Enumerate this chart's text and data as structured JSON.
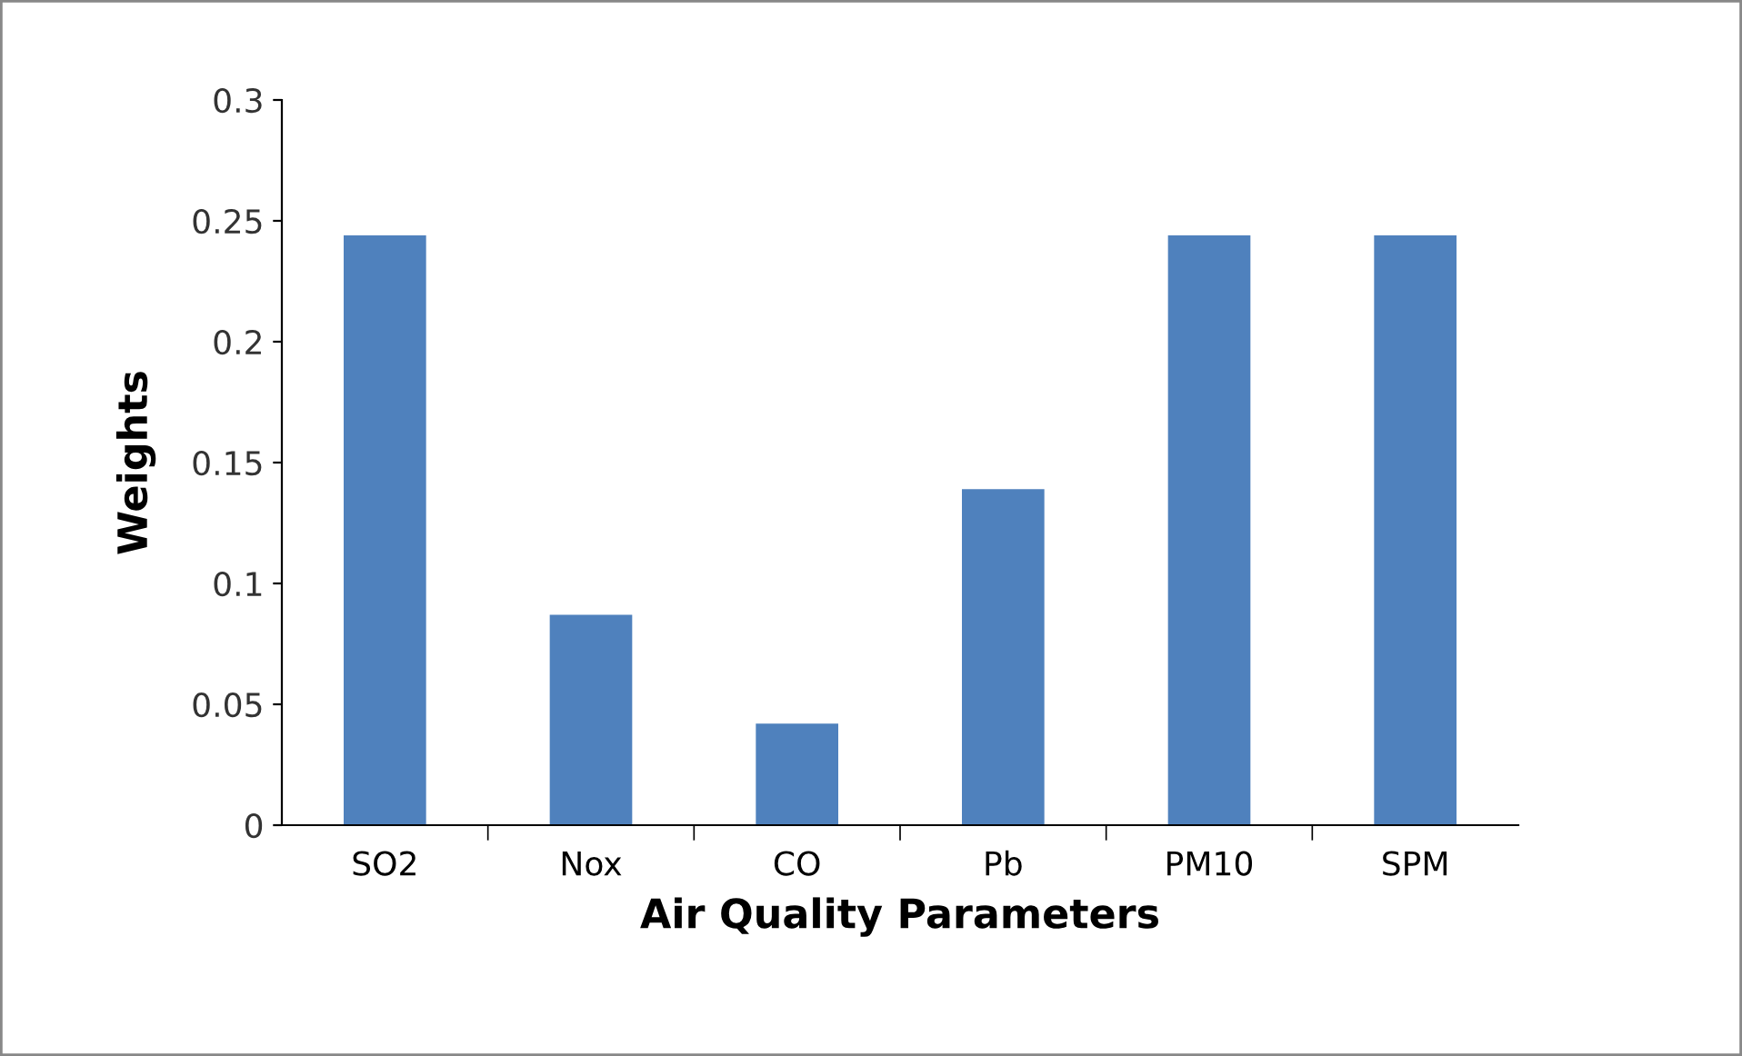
{
  "chart_data": {
    "type": "bar",
    "xlabel": "Air Quality Parameters",
    "ylabel": "Weights",
    "categories": [
      "SO2",
      "Nox",
      "CO",
      "Pb",
      "PM10",
      "SPM"
    ],
    "values": [
      0.244,
      0.087,
      0.042,
      0.139,
      0.244,
      0.244
    ],
    "color": "#4f81bd",
    "ylim": [
      0,
      0.3
    ],
    "yticks": [
      {
        "value": 0,
        "label": "0"
      },
      {
        "value": 0.05,
        "label": "0.05"
      },
      {
        "value": 0.1,
        "label": "0.1"
      },
      {
        "value": 0.15,
        "label": "0.15"
      },
      {
        "value": 0.2,
        "label": "0.2"
      },
      {
        "value": 0.25,
        "label": "0.25"
      },
      {
        "value": 0.3,
        "label": "0.3"
      }
    ],
    "grid": false,
    "legend": false
  }
}
